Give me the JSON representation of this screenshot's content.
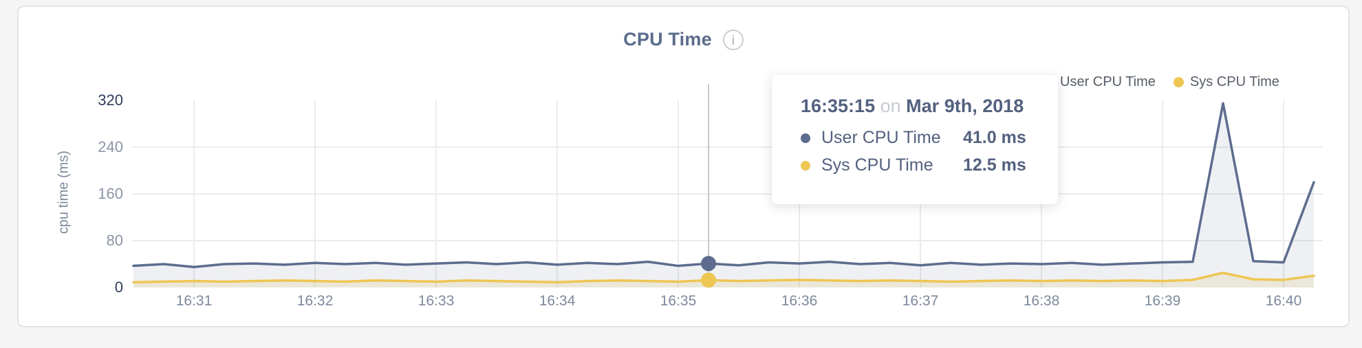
{
  "header": {
    "title": "CPU Time",
    "info_icon_glyph": "i"
  },
  "legend": [
    {
      "label": "User CPU Time",
      "color": "#5d6c8e"
    },
    {
      "label": "Sys CPU Time",
      "color": "#eec653"
    }
  ],
  "tooltip": {
    "time": "16:35:15",
    "preposition": "on",
    "date": "Mar 9th, 2018",
    "rows": [
      {
        "label": "User CPU Time",
        "value": "41.0 ms",
        "color": "#5d6c8e"
      },
      {
        "label": "Sys CPU Time",
        "value": "12.5 ms",
        "color": "#eec653"
      }
    ]
  },
  "chart_data": {
    "type": "area",
    "title": "CPU Time",
    "ylabel": "cpu time (ms)",
    "xlabel": "",
    "ylim": [
      0,
      320
    ],
    "y_tick_labels": [
      0,
      80,
      160,
      240,
      320
    ],
    "x_tick_labels": [
      "16:31",
      "16:32",
      "16:33",
      "16:34",
      "16:35",
      "16:36",
      "16:37",
      "16:38",
      "16:39",
      "16:40"
    ],
    "x_start_time": "16:30:30",
    "x_interval_seconds": 15,
    "grid": true,
    "legend_position": "top-right",
    "series": [
      {
        "name": "User CPU Time",
        "color": "#5d6c8e",
        "fill": "rgba(93,108,142,0.10)",
        "values": [
          37,
          40,
          35,
          40,
          41,
          39,
          42,
          40,
          42,
          39,
          41,
          43,
          40,
          43,
          39,
          42,
          40,
          44,
          37,
          41,
          38,
          43,
          41,
          44,
          40,
          42,
          38,
          42,
          39,
          41,
          40,
          42,
          39,
          41,
          43,
          44,
          315,
          45,
          43,
          180
        ]
      },
      {
        "name": "Sys CPU Time",
        "color": "#eec653",
        "fill": "rgba(222,196,98,0.18)",
        "values": [
          9,
          10,
          11,
          10,
          11,
          12,
          11,
          10,
          12,
          11,
          10,
          12,
          11,
          10,
          9,
          11,
          12,
          11,
          10,
          12.5,
          11,
          12,
          13,
          12,
          11,
          12,
          11,
          10,
          11,
          12,
          11,
          12,
          11,
          12,
          11,
          13,
          25,
          14,
          13,
          20
        ]
      }
    ],
    "hover": {
      "index": 19,
      "time": "16:35:15",
      "date": "Mar 9th, 2018",
      "values": {
        "User CPU Time": 41.0,
        "Sys CPU Time": 12.5
      },
      "line_color": "#c9c9c9"
    }
  },
  "colors": {
    "grid": "#ebebeb",
    "axis_major_tick": "#2e3d59",
    "axis_minor_tick": "#8b95a5",
    "axis_label": "#7d899c"
  }
}
